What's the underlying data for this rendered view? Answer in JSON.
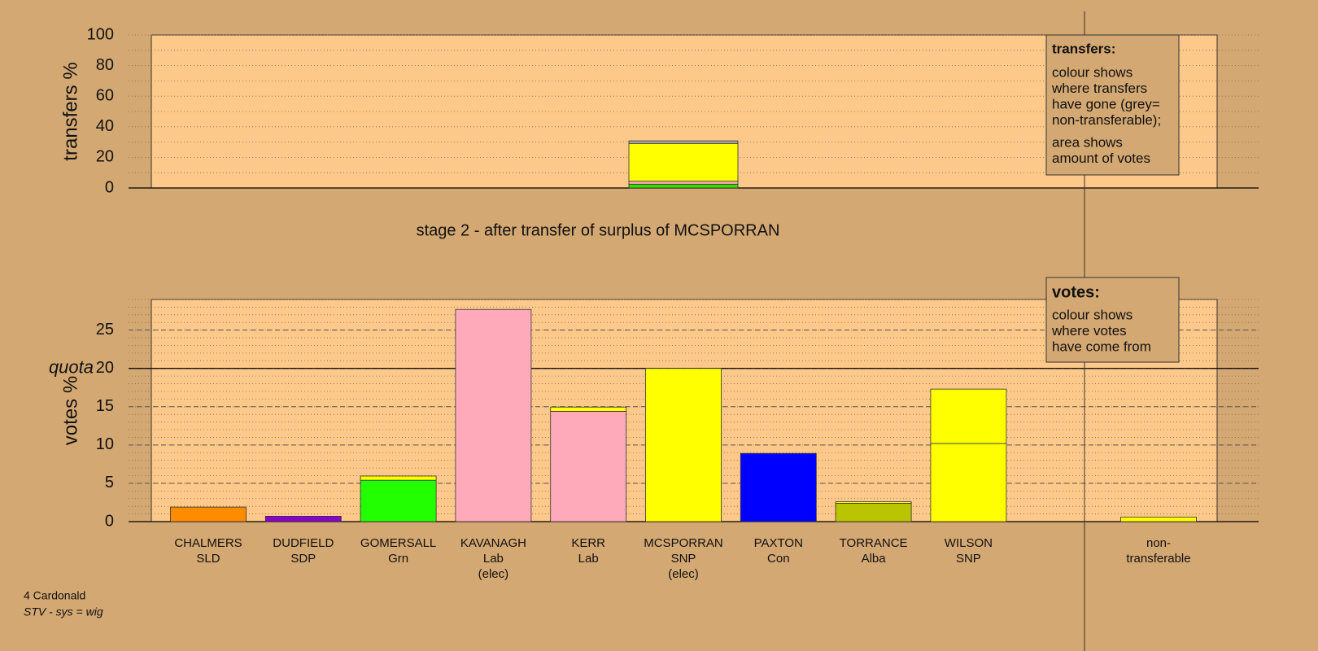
{
  "stage_title": "stage 2 - after transfer of surplus of MCSPORRAN",
  "footer": {
    "place": "4 Cardonald",
    "system": "STV - sys = wig"
  },
  "legends": {
    "transfers": {
      "title": "transfers:",
      "lines": [
        "colour shows",
        "where transfers",
        "have gone (grey=",
        "non-transferable);"
      ],
      "lines2": [
        "area shows",
        "amount of votes"
      ]
    },
    "votes": {
      "title": "votes:",
      "lines": [
        "colour shows",
        "where votes",
        "have come from"
      ]
    }
  },
  "chart_data": [
    {
      "type": "bar",
      "stacked": true,
      "ylabel": "transfers %",
      "ylim": [
        0,
        100
      ],
      "yticks": [
        0,
        20,
        40,
        60,
        80,
        100
      ],
      "grid_step": 10,
      "series": [
        {
          "color": "#33dd00",
          "values": [
            null,
            null,
            null,
            null,
            null,
            2.5,
            null,
            null,
            null,
            null,
            null
          ]
        },
        {
          "color": "#ffaabb",
          "values": [
            null,
            null,
            null,
            null,
            null,
            1.9,
            null,
            null,
            null,
            null,
            null
          ]
        },
        {
          "color": "#ffff00",
          "values": [
            null,
            null,
            null,
            null,
            null,
            24.7,
            null,
            null,
            null,
            null,
            null
          ]
        },
        {
          "color": "#aaaaaa",
          "values": [
            null,
            null,
            null,
            null,
            null,
            1.7,
            null,
            null,
            null,
            null,
            null
          ]
        }
      ]
    },
    {
      "type": "bar",
      "stacked": true,
      "ylabel": "votes %",
      "ylim": [
        0,
        29
      ],
      "yticks": [
        0,
        5,
        10,
        15,
        20,
        25
      ],
      "grid_step": 1,
      "quota": {
        "value": 20,
        "label": "quota"
      },
      "categories": [
        [
          "CHALMERS",
          "SLD"
        ],
        [
          "DUDFIELD",
          "SDP"
        ],
        [
          "GOMERSALL",
          "Grn"
        ],
        [
          "KAVANAGH",
          "Lab",
          "(elec)"
        ],
        [
          "KERR",
          "Lab"
        ],
        [
          "MCSPORRAN",
          "SNP",
          "(elec)"
        ],
        [
          "PAXTON",
          "Con"
        ],
        [
          "TORRANCE",
          "Alba"
        ],
        [
          "WILSON",
          "SNP"
        ],
        null,
        [
          "non-",
          "transferable"
        ]
      ],
      "series": [
        {
          "color": "#ff8c00",
          "values": [
            1.9,
            null,
            null,
            null,
            null,
            null,
            null,
            null,
            null,
            null,
            null
          ]
        },
        {
          "color": "#8800cc",
          "values": [
            null,
            0.7,
            null,
            null,
            null,
            null,
            null,
            null,
            null,
            null,
            null
          ]
        },
        {
          "color": "#22ff00",
          "values": [
            null,
            null,
            5.4,
            null,
            null,
            null,
            null,
            null,
            null,
            null,
            null
          ]
        },
        {
          "color": "#ffaabb",
          "values": [
            null,
            null,
            null,
            27.7,
            14.4,
            null,
            null,
            null,
            null,
            null,
            null
          ]
        },
        {
          "color": "#ffff00",
          "values": [
            null,
            null,
            null,
            null,
            null,
            20,
            null,
            null,
            10.2,
            null,
            null
          ]
        },
        {
          "color": "#0000ff",
          "values": [
            null,
            null,
            null,
            null,
            null,
            null,
            8.9,
            null,
            null,
            null,
            null
          ]
        },
        {
          "color": "#bbc400",
          "values": [
            null,
            null,
            null,
            null,
            null,
            null,
            null,
            2.4,
            null,
            null,
            null
          ]
        },
        {
          "color": "#ffff00",
          "values": [
            null,
            null,
            0.55,
            null,
            0.55,
            null,
            null,
            0.2,
            7.1,
            null,
            0.6
          ]
        }
      ]
    }
  ]
}
